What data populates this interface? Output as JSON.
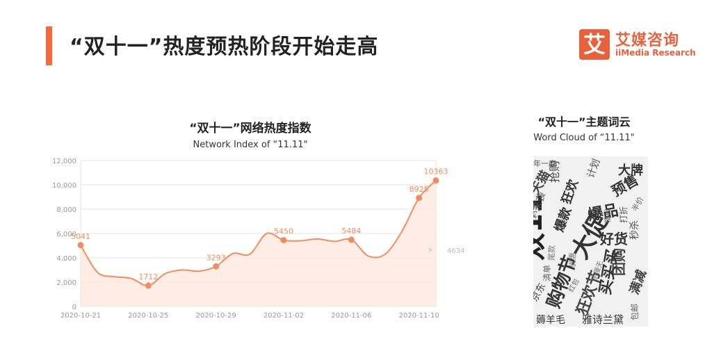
{
  "header": {
    "title": "“双十一”热度预热阶段开始走高",
    "accent_color": "#f26b3a"
  },
  "logo": {
    "mark": "艾",
    "name_cn": "艾媒咨询",
    "name_en": "iiMedia Research",
    "color": "#e8613a"
  },
  "chart_data": {
    "type": "area",
    "title": "“双十一”网络热度指数",
    "subtitle": "Network Index of “11.11\"",
    "categories": [
      "2020-10-21",
      "2020-10-25",
      "2020-10-29",
      "2020-11-02",
      "2020-11-06",
      "2020-11-10"
    ],
    "x_range": [
      0,
      21
    ],
    "ylim": [
      0,
      12000
    ],
    "yticks": [
      0,
      2000,
      4000,
      6000,
      8000,
      10000,
      12000
    ],
    "ytick_labels": [
      "0",
      "2,000",
      "4,000",
      "6,000",
      "8,000",
      "10,000",
      "12,000"
    ],
    "grid": true,
    "series": [
      {
        "color": "#f28c5e",
        "line": [
          [
            0,
            5041
          ],
          [
            1,
            2800
          ],
          [
            2,
            2450
          ],
          [
            3,
            2300
          ],
          [
            4,
            1712
          ],
          [
            5,
            2700
          ],
          [
            6,
            3000
          ],
          [
            7,
            2900
          ],
          [
            8,
            3293
          ],
          [
            9,
            4350
          ],
          [
            10,
            4300
          ],
          [
            11,
            6000
          ],
          [
            12,
            5450
          ],
          [
            13,
            5400
          ],
          [
            14,
            5550
          ],
          [
            15,
            5350
          ],
          [
            16,
            5484
          ],
          [
            17,
            4150
          ],
          [
            18,
            4300
          ],
          [
            19,
            6200
          ],
          [
            20,
            8925
          ],
          [
            21,
            10363
          ]
        ],
        "labeled_points": [
          {
            "x": 0,
            "y": 5041,
            "label": "5041"
          },
          {
            "x": 4,
            "y": 1712,
            "label": "1712"
          },
          {
            "x": 8,
            "y": 3293,
            "label": "3293"
          },
          {
            "x": 12,
            "y": 5450,
            "label": "5450"
          },
          {
            "x": 16,
            "y": 5484,
            "label": "5484"
          },
          {
            "x": 20,
            "y": 8925,
            "label": "8925"
          },
          {
            "x": 21,
            "y": 10363,
            "label": "10363"
          }
        ]
      }
    ],
    "annotation": {
      "y": 4634,
      "label": "4634"
    }
  },
  "word_cloud": {
    "title": "“双十一”主题词云",
    "subtitle": "Word Cloud of “11.11\"",
    "words": [
      "双11",
      "大促",
      "购物节",
      "狂欢节",
      "爆品",
      "好货",
      "团购",
      "满减",
      "预售",
      "大牌",
      "天猫",
      "狂欢",
      "爆款",
      "买买买",
      "秒杀",
      "年一度",
      "抢购",
      "薅羊毛",
      "雅诗兰黛",
      "京东",
      "剁手",
      "来袭",
      "计划",
      "清单",
      "福利",
      "红包",
      "半价",
      "手慢无",
      "包邮",
      "优惠",
      "打折",
      "尾款"
    ]
  }
}
